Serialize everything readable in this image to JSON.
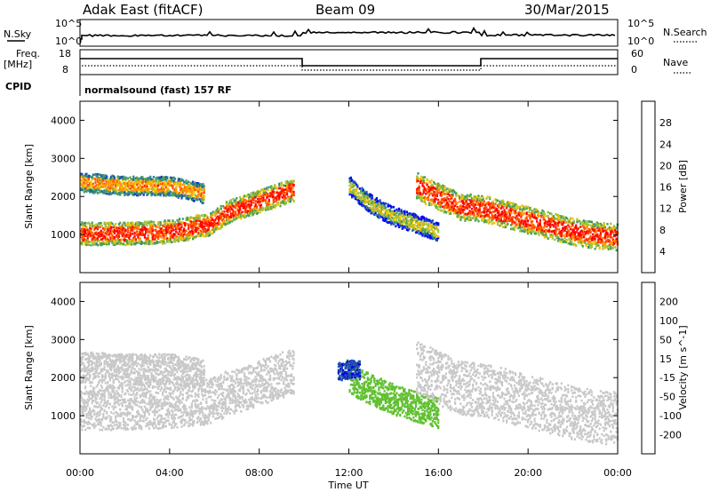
{
  "header": {
    "radar_title": "Adak East (fitACF)",
    "beam": "Beam 09",
    "date": "30/Mar/2015"
  },
  "panels": {
    "nsky_label": "N.Sky",
    "nsearch_label": "N.Search",
    "nsky_ticks": [
      "10^5",
      "10^0"
    ],
    "nsearch_ticks": [
      "10^5",
      "10^0"
    ],
    "freq_label_1": "Freq.",
    "freq_label_2": "[MHz]",
    "freq_ticks": [
      "18",
      "8"
    ],
    "nave_label": "Nave",
    "nave_ticks": [
      "60",
      "0"
    ],
    "cpid_label": "CPID",
    "cpid_text": "normalsound (fast) 157 RF"
  },
  "colors": {
    "power_scale": [
      "#0000ff",
      "#1f4fb0",
      "#2e8a8a",
      "#4aa050",
      "#a3c23a",
      "#f0c000",
      "#ff9000",
      "#ff5000",
      "#ff0000"
    ],
    "velocity_scale": [
      "#ff0000",
      "#ff5500",
      "#ff9933",
      "#e8b040",
      "#c8c8c8",
      "#c8c8c8",
      "#60c030",
      "#40a040",
      "#2e7d5a",
      "#1f4fb0",
      "#0000dd"
    ],
    "ground_scatter": "#c0c0c0",
    "line": "#000000"
  },
  "chart_data": [
    {
      "type": "heatmap",
      "name": "power",
      "ylabel": "Slant Range [km]",
      "colorbar_label": "Power [dB]",
      "colorbar_ticks": [
        "28",
        "24",
        "20",
        "16",
        "12",
        "8",
        "4"
      ],
      "colorbar_range": [
        0,
        32
      ],
      "ylim": [
        0,
        4500
      ],
      "yticks": [
        "4000",
        "3000",
        "2000",
        "1000"
      ],
      "xlim": [
        0,
        24
      ],
      "xticks": [
        "00:00",
        "04:00",
        "08:00",
        "12:00",
        "16:00",
        "20:00",
        "00:00"
      ],
      "bands": [
        {
          "x": [
            0,
            2,
            4,
            5.8,
            6.5,
            7.5,
            8.5,
            9.5
          ],
          "y": [
            1050,
            1050,
            1100,
            1300,
            1600,
            1800,
            2000,
            2200
          ],
          "width_km": 300,
          "value": 24
        },
        {
          "x": [
            0,
            2,
            4,
            5.5
          ],
          "y": [
            2400,
            2300,
            2300,
            2100
          ],
          "width_km": 250,
          "value": 18
        },
        {
          "x": [
            12,
            13,
            14,
            15,
            16
          ],
          "y": [
            2300,
            1800,
            1500,
            1300,
            1100
          ],
          "width_km": 250,
          "value": 12
        },
        {
          "x": [
            15,
            16,
            17,
            18,
            19,
            20,
            21,
            22,
            23,
            24
          ],
          "y": [
            2300,
            2000,
            1750,
            1700,
            1550,
            1400,
            1250,
            1100,
            1000,
            950
          ],
          "width_km": 350,
          "value": 24
        }
      ]
    },
    {
      "type": "heatmap",
      "name": "velocity",
      "ylabel": "Slant Range [km]",
      "colorbar_label": "Velocity [m s^-1]",
      "colorbar_ticks": [
        "200",
        "100",
        "50",
        "15",
        "-15",
        "-50",
        "-100",
        "-200"
      ],
      "colorbar_range": [
        -250,
        250
      ],
      "ylim": [
        0,
        4500
      ],
      "yticks": [
        "4000",
        "3000",
        "2000",
        "1000"
      ],
      "xlim": [
        0,
        24
      ],
      "xticks": [
        "00:00",
        "04:00",
        "08:00",
        "12:00",
        "16:00",
        "20:00",
        "00:00"
      ],
      "xlabel": "Time UT",
      "bands": [
        {
          "x": [
            0,
            2,
            4,
            5.8,
            6.5,
            7.5,
            8.5,
            9.5
          ],
          "y": [
            1250,
            1250,
            1300,
            1400,
            1600,
            1800,
            2000,
            2200
          ],
          "width_km": 600,
          "value": 0
        },
        {
          "x": [
            0,
            2,
            4,
            5.5
          ],
          "y": [
            2300,
            2250,
            2250,
            2100
          ],
          "width_km": 400,
          "value": 0
        },
        {
          "x": [
            12,
            13,
            14,
            15,
            16
          ],
          "y": [
            2000,
            1700,
            1450,
            1250,
            1100
          ],
          "width_km": 400,
          "value": 40
        },
        {
          "x": [
            11.5,
            12,
            12.5
          ],
          "y": [
            2200,
            2250,
            2200
          ],
          "width_km": 250,
          "value": 200
        },
        {
          "x": [
            15,
            16,
            17,
            18,
            19,
            20,
            21,
            22,
            23,
            24
          ],
          "y": [
            2300,
            2000,
            1750,
            1700,
            1550,
            1400,
            1250,
            1100,
            1000,
            950
          ],
          "width_km": 700,
          "value": 0
        }
      ]
    }
  ],
  "axes": {
    "xlabel": "Time UT"
  }
}
